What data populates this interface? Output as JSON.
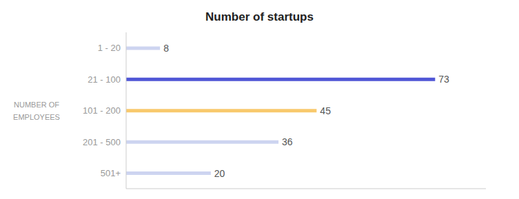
{
  "chart_data": {
    "type": "bar",
    "orientation": "horizontal",
    "title": "Number of startups",
    "y_label": "NUMBER OF\nEMPLOYEES",
    "categories": [
      "1 - 20",
      "21 - 100",
      "101 - 200",
      "201 - 500",
      "501+"
    ],
    "values": [
      8,
      73,
      45,
      36,
      20
    ],
    "colors": [
      "#cdd4f0",
      "#4f56d6",
      "#f8c96c",
      "#cdd4f0",
      "#cdd4f0"
    ],
    "xlim": [
      0,
      85
    ],
    "grid": false,
    "data_labels": true,
    "tick_labels": "y"
  }
}
